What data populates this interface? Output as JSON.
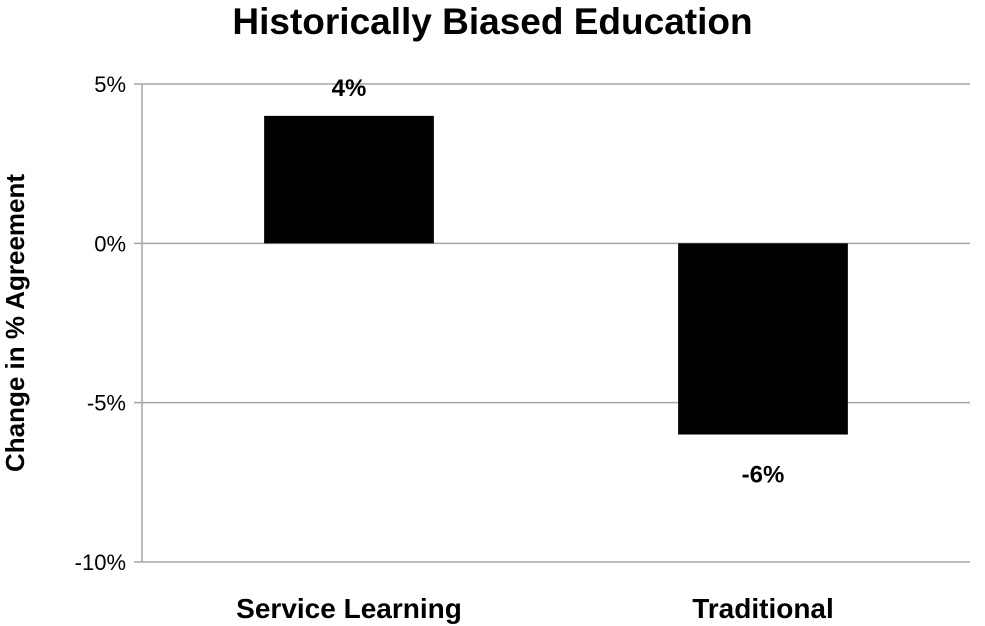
{
  "chart_data": {
    "type": "bar",
    "title": "Historically Biased Education",
    "ylabel": "Change in % Agreement",
    "xlabel": "",
    "categories": [
      "Service Learning",
      "Traditional"
    ],
    "values": [
      4,
      -6
    ],
    "data_labels": [
      "4%",
      "-6%"
    ],
    "ylim": [
      -10,
      5
    ],
    "yticks": [
      5,
      0,
      -5,
      -10
    ],
    "ytick_labels": [
      "5%",
      "0%",
      "-5%",
      "-10%"
    ],
    "bar_color": "#000000",
    "grid": true,
    "legend": "none"
  }
}
